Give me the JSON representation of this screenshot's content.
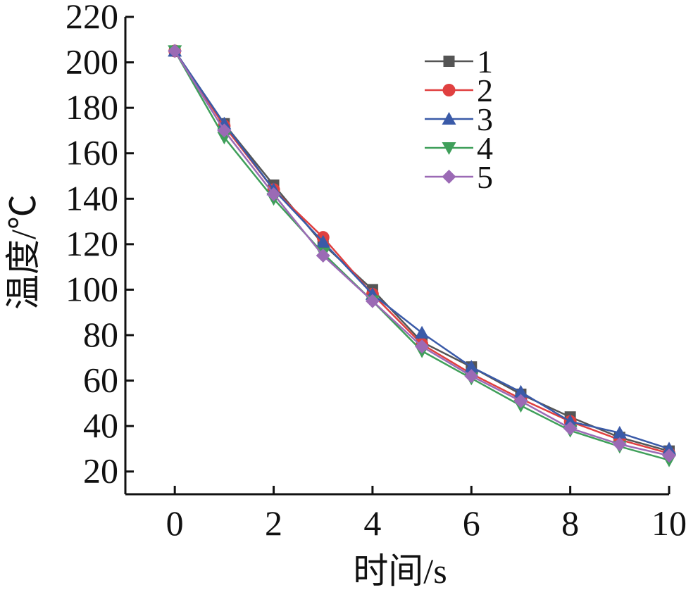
{
  "chart_data": {
    "type": "line",
    "title": "",
    "xlabel": "时间/s",
    "ylabel": "温度/℃",
    "xlim": [
      -1,
      10
    ],
    "ylim": [
      10,
      220
    ],
    "x_ticks": [
      0,
      2,
      4,
      6,
      8,
      10
    ],
    "y_ticks": [
      20,
      40,
      60,
      80,
      100,
      120,
      140,
      160,
      180,
      200,
      220
    ],
    "grid": false,
    "legend_position": "top-right",
    "x": [
      0,
      1,
      2,
      3,
      4,
      5,
      6,
      7,
      8,
      9,
      10
    ],
    "series": [
      {
        "name": "1",
        "color": "#555555",
        "marker": "square",
        "values": [
          205,
          173,
          146,
          120,
          100,
          77,
          66,
          54,
          44,
          35,
          29
        ]
      },
      {
        "name": "2",
        "color": "#e04040",
        "marker": "circle",
        "values": [
          205,
          172,
          144,
          123,
          98,
          76,
          63,
          52,
          42,
          34,
          28
        ]
      },
      {
        "name": "3",
        "color": "#3a5aa8",
        "marker": "triangle-up",
        "values": [
          205,
          173,
          144,
          121,
          98,
          81,
          66,
          55,
          42,
          37,
          30
        ]
      },
      {
        "name": "4",
        "color": "#3f9f5a",
        "marker": "triangle-down",
        "values": [
          205,
          167,
          140,
          116,
          95,
          73,
          61,
          49,
          38,
          31,
          25
        ]
      },
      {
        "name": "5",
        "color": "#9b6ab5",
        "marker": "diamond",
        "values": [
          205,
          170,
          142,
          115,
          95,
          75,
          62,
          51,
          39,
          32,
          27
        ]
      }
    ]
  }
}
